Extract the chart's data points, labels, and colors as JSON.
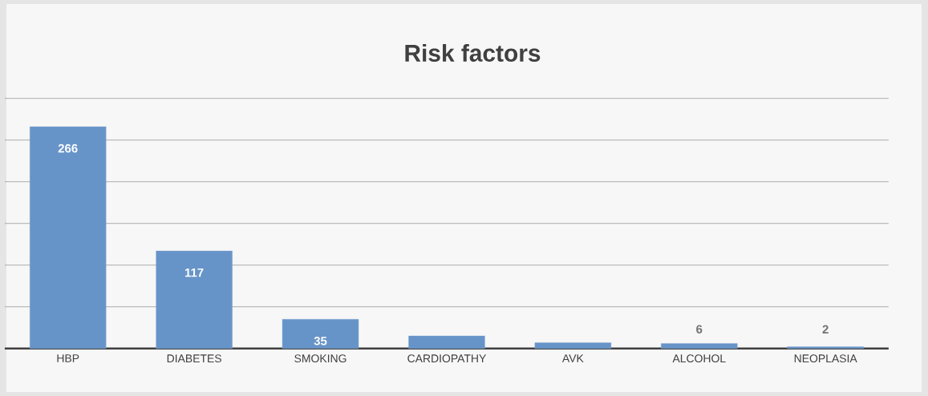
{
  "chart_data": {
    "type": "bar",
    "title": "Risk factors",
    "categories": [
      "HBP",
      "DIABETES",
      "SMOKING",
      "CARDIOPATHY",
      "AVK",
      "ALCOHOL",
      "NEOPLASIA"
    ],
    "values": [
      266,
      117,
      35,
      15,
      7,
      6,
      2
    ],
    "value_labels": [
      "266",
      "117",
      "35",
      null,
      null,
      "6",
      "2"
    ],
    "color": "#6794c8",
    "ylim": [
      0,
      300
    ],
    "yticks": [
      {
        "value": 0,
        "label": null
      },
      {
        "value": 50,
        "label": null
      },
      {
        "value": 100,
        "label": null
      },
      {
        "value": 150,
        "label": null
      },
      {
        "value": 200,
        "label": null
      },
      {
        "value": 250,
        "label": null
      },
      {
        "value": 300,
        "label": null
      }
    ],
    "grid": "y",
    "tick_labels": "x"
  }
}
